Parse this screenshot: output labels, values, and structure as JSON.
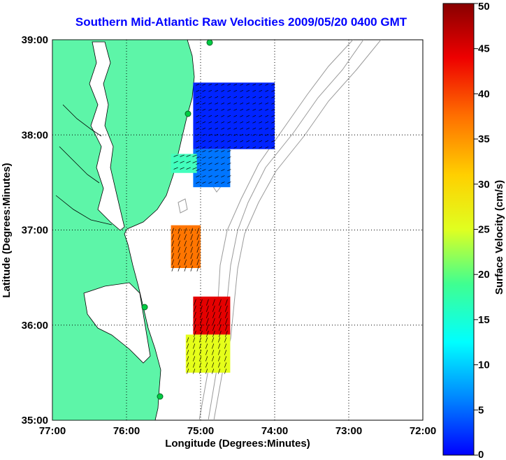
{
  "title": "Southern Mid-Atlantic Raw Velocities 2009/05/20 0400 GMT",
  "xlabel": "Longitude (Degrees:Minutes)",
  "ylabel": "Latitude (Degrees:Minutes)",
  "x_ticks": [
    "77:00",
    "76:00",
    "75:00",
    "74:00",
    "73:00",
    "72:00"
  ],
  "y_ticks": [
    "39:00",
    "38:00",
    "37:00",
    "36:00",
    "35:00"
  ],
  "colorbar": {
    "label": "Surface Velocity (cm/s)",
    "ticks": [
      "50",
      "45",
      "40",
      "35",
      "30",
      "25",
      "20",
      "15",
      "10",
      "5",
      "0"
    ]
  },
  "colors": {
    "land": "#5df5a8",
    "title": "#0000ff",
    "bathymetry": "#9a9a9a"
  },
  "chart_data": {
    "type": "heatmap",
    "xlim": [
      -77,
      -72
    ],
    "ylim": [
      35,
      39
    ],
    "clim": [
      0,
      50
    ],
    "regions": [
      {
        "lon_min": -75.1,
        "lon_max": -74.0,
        "lat_min": 37.85,
        "lat_max": 38.55,
        "speed": 8
      },
      {
        "lon_min": -75.1,
        "lon_max": -74.6,
        "lat_min": 37.45,
        "lat_max": 37.85,
        "speed": 12
      },
      {
        "lon_min": -75.4,
        "lon_max": -75.05,
        "lat_min": 37.6,
        "lat_max": 37.8,
        "speed": 22
      },
      {
        "lon_min": -75.4,
        "lon_max": -75.0,
        "lat_min": 36.6,
        "lat_max": 37.05,
        "speed": 38
      },
      {
        "lon_min": -75.1,
        "lon_max": -74.6,
        "lat_min": 35.9,
        "lat_max": 36.3,
        "speed": 45
      },
      {
        "lon_min": -75.2,
        "lon_max": -74.6,
        "lat_min": 35.5,
        "lat_max": 35.9,
        "speed": 30
      }
    ]
  }
}
